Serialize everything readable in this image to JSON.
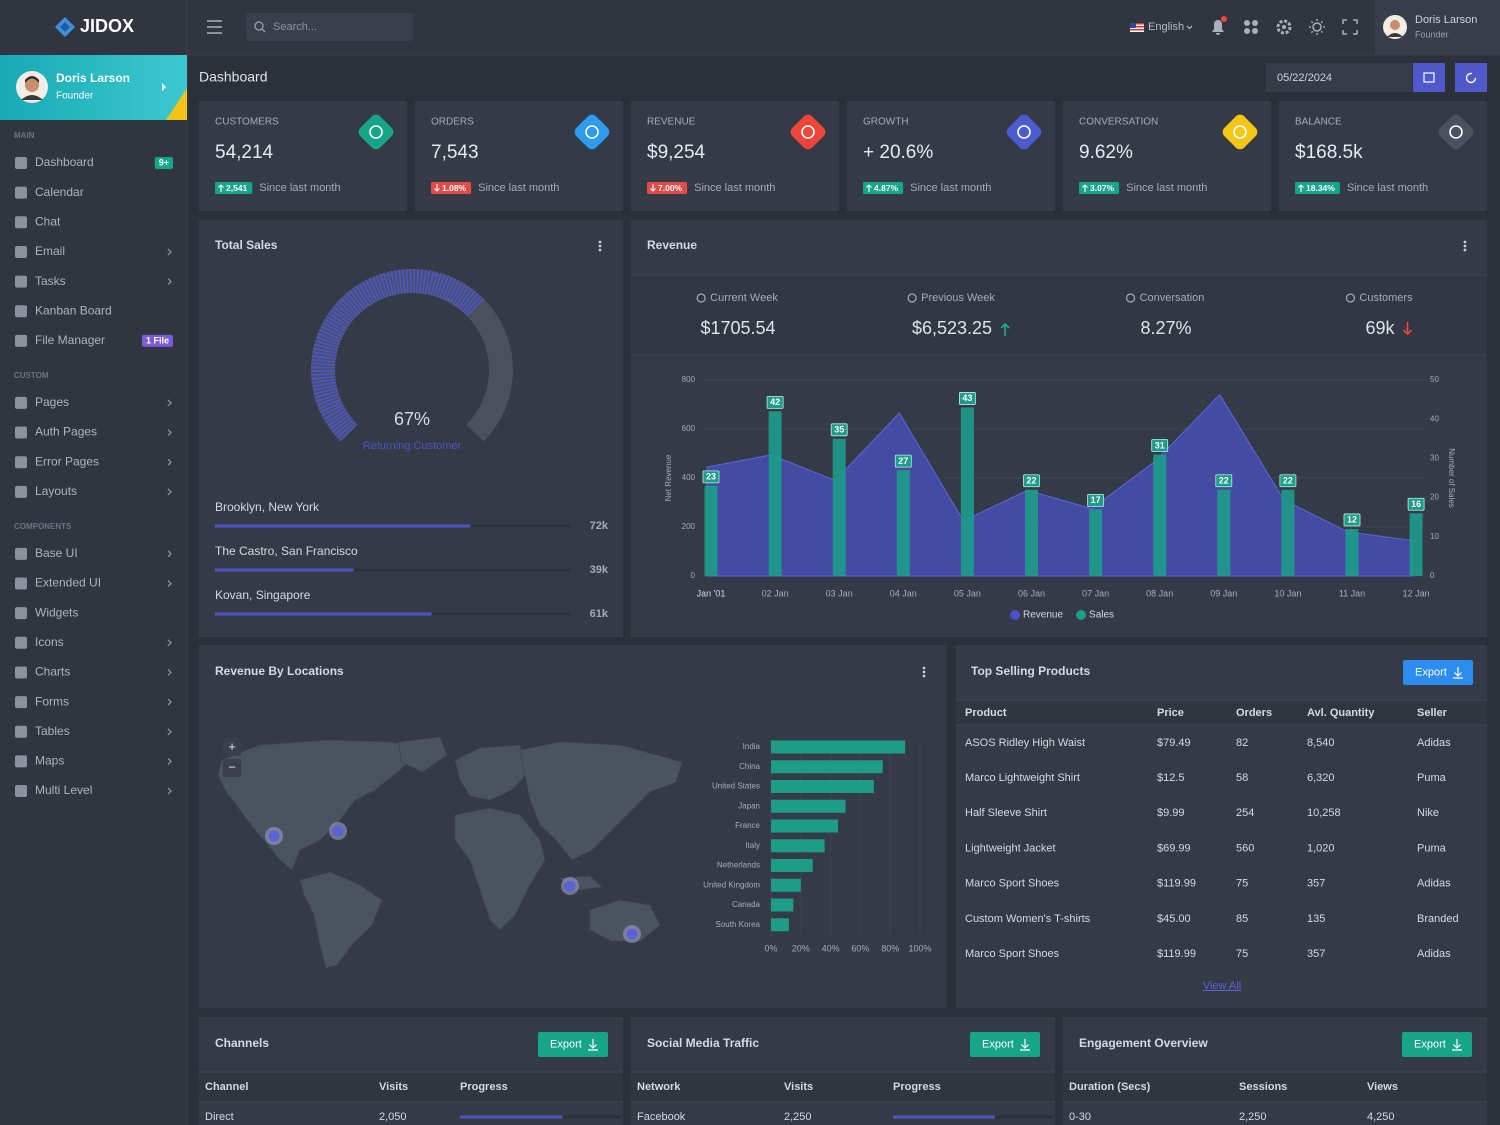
{
  "brand": "JIDOX",
  "topbar": {
    "search_placeholder": "Search...",
    "language": "English",
    "user": {
      "name": "Doris Larson",
      "role": "Founder"
    }
  },
  "sidebar": {
    "user": {
      "name": "Doris Larson",
      "role": "Founder"
    },
    "sections": [
      {
        "title": "MAIN",
        "items": [
          {
            "label": "Dashboard",
            "badge": "9+",
            "badge_color": "#14a88a"
          },
          {
            "label": "Calendar"
          },
          {
            "label": "Chat"
          },
          {
            "label": "Email",
            "submenu": true
          },
          {
            "label": "Tasks",
            "submenu": true
          },
          {
            "label": "Kanban Board"
          },
          {
            "label": "File Manager",
            "badge": "1 File",
            "badge_color": "#7b5bd6"
          }
        ]
      },
      {
        "title": "CUSTOM",
        "items": [
          {
            "label": "Pages",
            "submenu": true
          },
          {
            "label": "Auth Pages",
            "submenu": true
          },
          {
            "label": "Error Pages",
            "submenu": true
          },
          {
            "label": "Layouts",
            "submenu": true
          }
        ]
      },
      {
        "title": "COMPONENTS",
        "items": [
          {
            "label": "Base UI",
            "submenu": true
          },
          {
            "label": "Extended UI",
            "submenu": true
          },
          {
            "label": "Widgets"
          },
          {
            "label": "Icons",
            "submenu": true
          },
          {
            "label": "Charts",
            "submenu": true
          },
          {
            "label": "Forms",
            "submenu": true
          },
          {
            "label": "Tables",
            "submenu": true
          },
          {
            "label": "Maps",
            "submenu": true
          },
          {
            "label": "Multi Level",
            "submenu": true
          }
        ]
      }
    ]
  },
  "page": {
    "title": "Dashboard",
    "date": "05/22/2024"
  },
  "stats": [
    {
      "label": "CUSTOMERS",
      "value": "54,214",
      "change": "2,541",
      "direction": "up",
      "note": "Since last month",
      "color": "#17a58a"
    },
    {
      "label": "ORDERS",
      "value": "7,543",
      "change": "1.08%",
      "direction": "down",
      "note": "Since last month",
      "color": "#2d9cf0"
    },
    {
      "label": "REVENUE",
      "value": "$9,254",
      "change": "7.00%",
      "direction": "down",
      "note": "Since last month",
      "color": "#f0453a"
    },
    {
      "label": "GROWTH",
      "value": "+ 20.6%",
      "change": "4.87%",
      "direction": "up",
      "note": "Since last month",
      "color": "#4d5bd1"
    },
    {
      "label": "CONVERSATION",
      "value": "9.62%",
      "change": "3.07%",
      "direction": "up",
      "note": "Since last month",
      "color": "#f5c518"
    },
    {
      "label": "BALANCE",
      "value": "$168.5k",
      "change": "18.34%",
      "direction": "up",
      "note": "Since last month",
      "color": "#4a5163"
    }
  ],
  "total_sales": {
    "title": "Total Sales",
    "gauge": {
      "value": 67,
      "label": "67%",
      "caption": "Returning Customer",
      "range": [
        0,
        100
      ],
      "color": "#4a55c8"
    },
    "locations": {
      "type": "bar",
      "categories": [
        "Brooklyn, New York",
        "The Castro, San Francisco",
        "Kovan, Singapore"
      ],
      "values": [
        72000,
        39000,
        61000
      ],
      "value_labels": [
        "72k",
        "39k",
        "61k"
      ],
      "xlim": [
        0,
        100000
      ],
      "color": "#4a55c8"
    }
  },
  "revenue": {
    "title": "Revenue",
    "summary": [
      {
        "label": "Current Week",
        "value": "$1705.54"
      },
      {
        "label": "Previous Week",
        "value": "$6,523.25",
        "trend": "up"
      },
      {
        "label": "Conversation",
        "value": "8.27%"
      },
      {
        "label": "Customers",
        "value": "69k",
        "trend": "down"
      }
    ],
    "chart": {
      "type": "combo",
      "categories": [
        "Jan '01",
        "02 Jan",
        "03 Jan",
        "04 Jan",
        "05 Jan",
        "06 Jan",
        "07 Jan",
        "08 Jan",
        "09 Jan",
        "10 Jan",
        "11 Jan",
        "12 Jan"
      ],
      "series": [
        {
          "name": "Revenue",
          "type": "area",
          "color": "#4a52c6",
          "values": [
            445,
            494,
            390,
            665,
            225,
            350,
            275,
            470,
            740,
            310,
            180,
            145
          ]
        },
        {
          "name": "Sales",
          "type": "bar",
          "axis": "y2",
          "color": "#1e9c8a",
          "values": [
            23,
            42,
            35,
            27,
            43,
            22,
            17,
            31,
            22,
            22,
            12,
            16
          ]
        }
      ],
      "ylim": [
        0,
        800
      ],
      "yticks": [
        0,
        200,
        400,
        600,
        800
      ],
      "y2lim": [
        0,
        50
      ],
      "y2ticks": [
        0,
        10,
        20,
        30,
        40,
        50
      ],
      "ylabel": "Net Revenue",
      "y2label": "Number of Sales",
      "grid": true,
      "legend": "bottom"
    }
  },
  "locations": {
    "title": "Revenue By Locations",
    "map": {
      "zoom_in": "+",
      "zoom_out": "−"
    },
    "chart": {
      "type": "barh",
      "categories": [
        "India",
        "China",
        "United States",
        "Japan",
        "France",
        "Italy",
        "Netherlands",
        "United Kingdom",
        "Canada",
        "South Korea"
      ],
      "values": [
        90,
        75,
        69,
        50,
        45,
        36,
        28,
        20,
        15,
        12
      ],
      "xlim": [
        0,
        100
      ],
      "xticks": [
        {
          "value": 0,
          "label": "0%"
        },
        {
          "value": 20,
          "label": "20%"
        },
        {
          "value": 40,
          "label": "40%"
        },
        {
          "value": 60,
          "label": "60%"
        },
        {
          "value": 80,
          "label": "80%"
        },
        {
          "value": 100,
          "label": "100%"
        }
      ],
      "color": "#1e9c8a"
    }
  },
  "products": {
    "title": "Top Selling Products",
    "button": "Export",
    "columns": [
      "Product",
      "Price",
      "Orders",
      "Avl. Quantity",
      "Seller"
    ],
    "rows": [
      [
        "ASOS Ridley High Waist",
        "$79.49",
        "82",
        "8,540",
        "Adidas"
      ],
      [
        "Marco Lightweight Shirt",
        "$12.5",
        "58",
        "6,320",
        "Puma"
      ],
      [
        "Half Sleeve Shirt",
        "$9.99",
        "254",
        "10,258",
        "Nike"
      ],
      [
        "Lightweight Jacket",
        "$69.99",
        "560",
        "1,020",
        "Puma"
      ],
      [
        "Marco Sport Shoes",
        "$119.99",
        "75",
        "357",
        "Adidas"
      ],
      [
        "Custom Women's T-shirts",
        "$45.00",
        "85",
        "135",
        "Branded"
      ],
      [
        "Marco Sport Shoes",
        "$119.99",
        "75",
        "357",
        "Adidas"
      ]
    ],
    "link": "View All"
  },
  "channels": {
    "title": "Channels",
    "button": "Export",
    "columns": [
      "Channel",
      "Visits",
      "Progress"
    ],
    "rows": [
      {
        "cells": [
          "Direct",
          "2,050"
        ],
        "progress": 64
      }
    ],
    "xlim": [
      0,
      100
    ]
  },
  "social": {
    "title": "Social Media Traffic",
    "button": "Export",
    "columns": [
      "Network",
      "Visits",
      "Progress"
    ],
    "rows": [
      {
        "cells": [
          "Facebook",
          "2,250"
        ],
        "progress": 64
      }
    ],
    "xlim": [
      0,
      100
    ]
  },
  "engagement": {
    "title": "Engagement Overview",
    "button": "Export",
    "columns": [
      "Duration (Secs)",
      "Sessions",
      "Views"
    ],
    "rows": [
      {
        "cells": [
          "0-30",
          "2,250",
          "4,250"
        ]
      }
    ]
  }
}
